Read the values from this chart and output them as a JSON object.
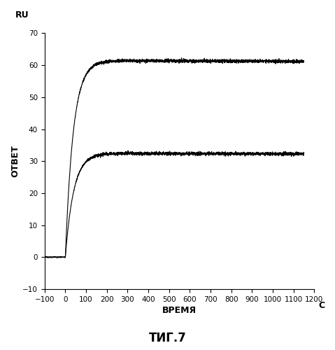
{
  "title": "ΤИГ.7",
  "xlabel": "ВРЕМЯ",
  "ylabel": "ОТВЕТ",
  "ru_label": "RU",
  "x_unit": "С",
  "xlim": [
    -100,
    1200
  ],
  "ylim": [
    -10,
    70
  ],
  "xticks": [
    -100,
    0,
    100,
    200,
    300,
    400,
    500,
    600,
    700,
    800,
    900,
    1000,
    1100,
    1200
  ],
  "yticks": [
    -10,
    0,
    10,
    20,
    30,
    40,
    50,
    60,
    70
  ],
  "curve1_max": 61.5,
  "curve1_plateau": 60.0,
  "curve2_max": 32.5,
  "curve2_plateau": 31.5,
  "rise_tau1": 38,
  "rise_tau2": 40,
  "line_color": "#000000",
  "bg_color": "#ffffff",
  "noise_amplitude": 0.25
}
